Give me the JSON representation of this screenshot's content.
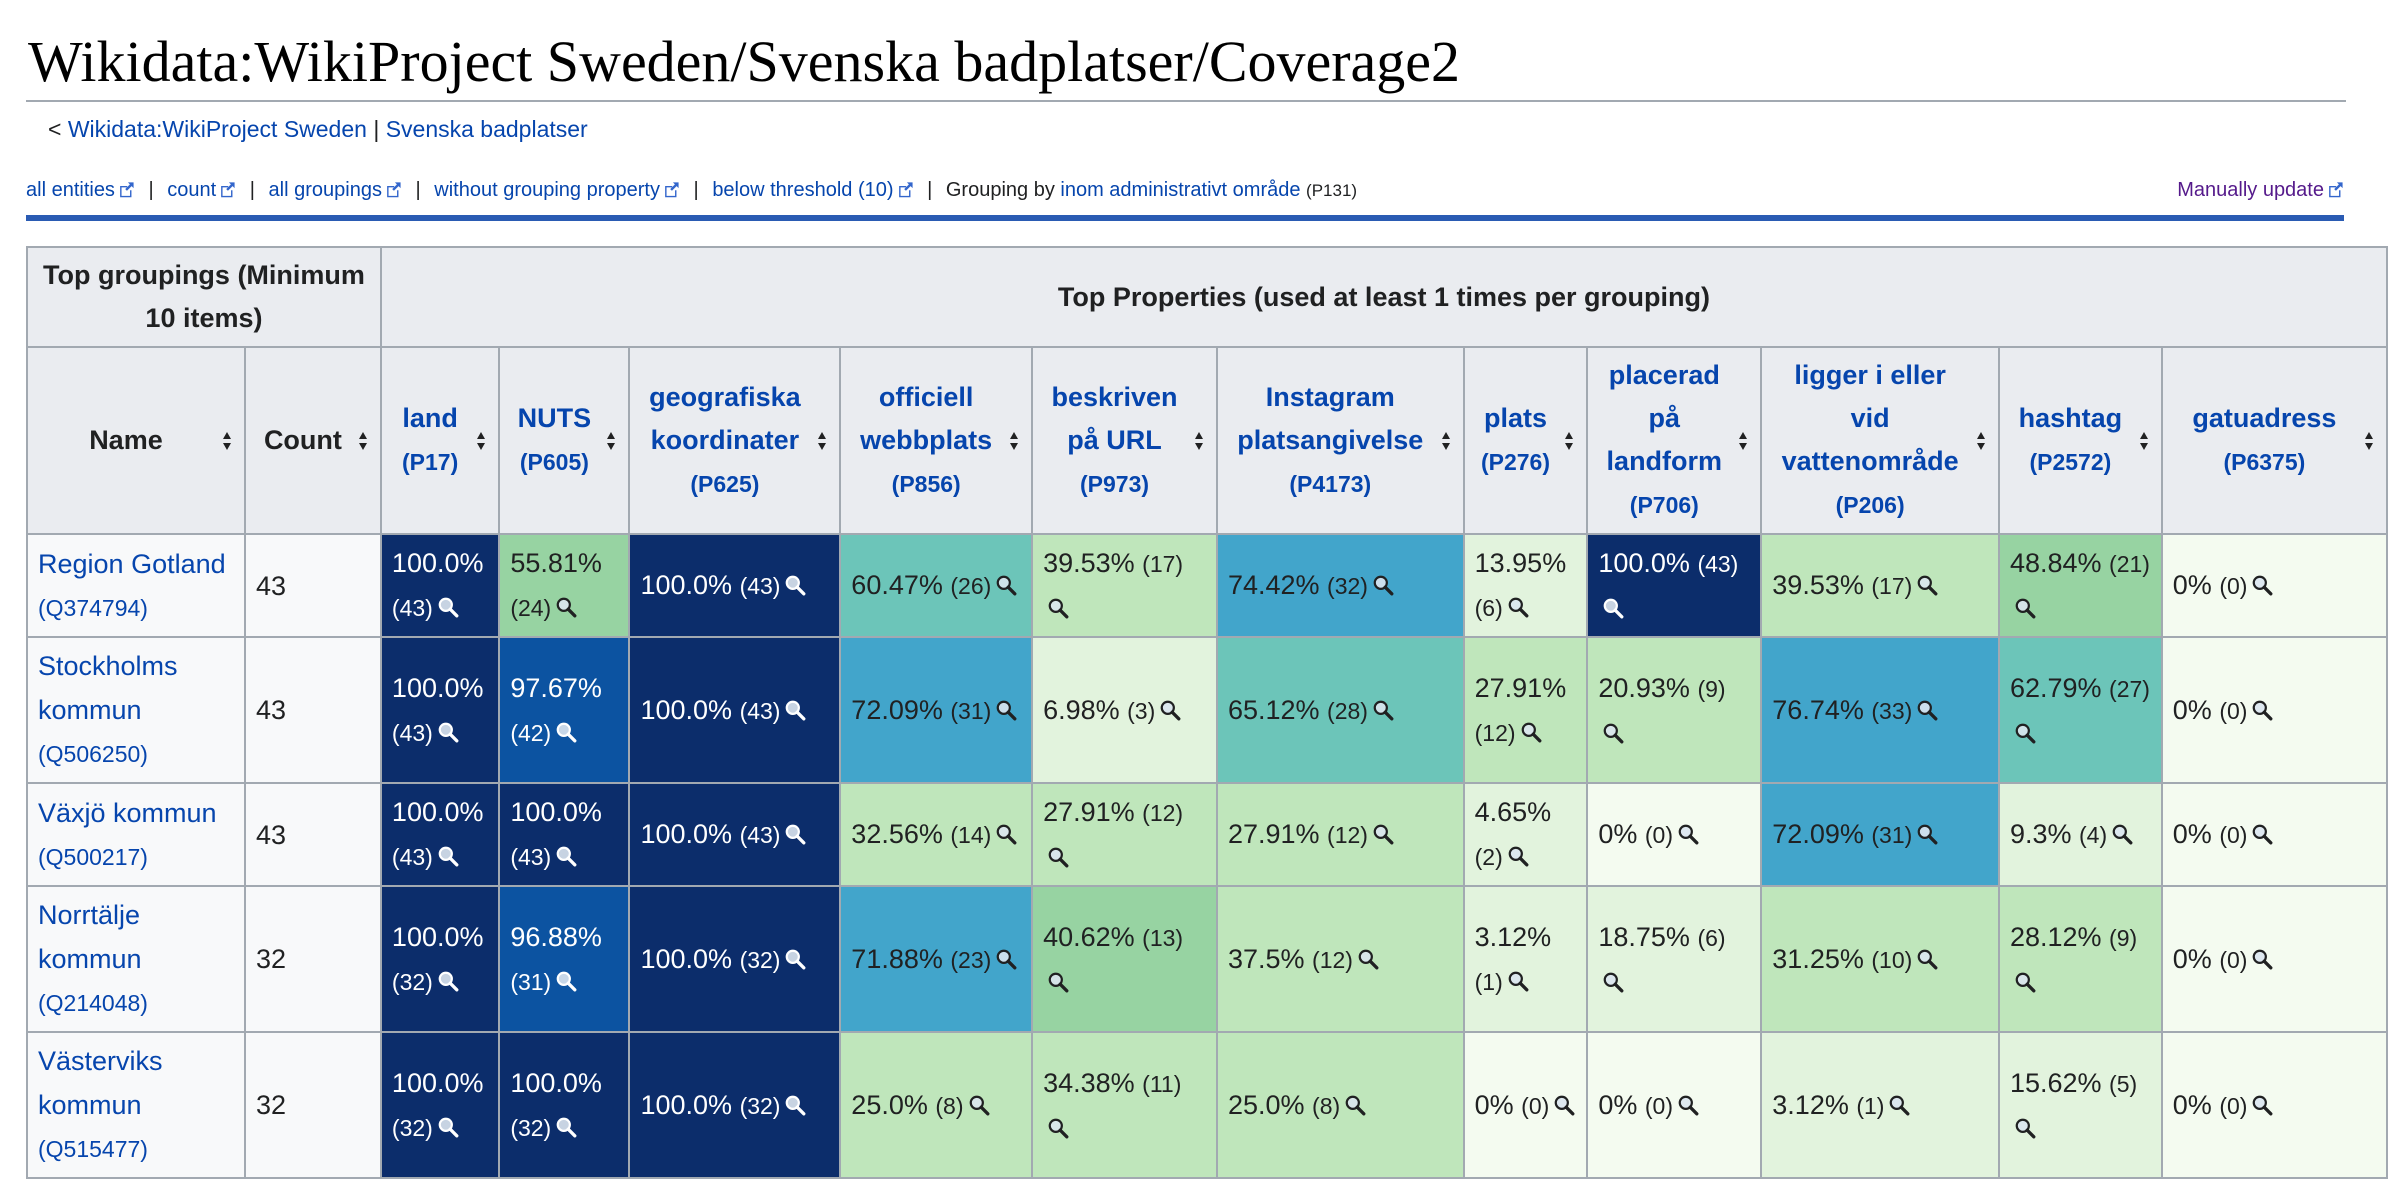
{
  "page": {
    "title": "Wikidata:WikiProject Sweden/Svenska badplatser/Coverage2",
    "subpages": {
      "prefix": "<",
      "parent_link": "Wikidata:WikiProject Sweden",
      "separator": "|",
      "child_link": "Svenska badplatser"
    }
  },
  "navbar": {
    "links": [
      "all entities",
      "count",
      "all groupings",
      "without grouping property",
      "below threshold (10)"
    ],
    "separator": "|",
    "grouping_prefix": "Grouping by",
    "grouping_property": "inom administrativt område",
    "grouping_pid": "(P131)",
    "manual_update": "Manually update"
  },
  "table": {
    "top_groupings_header": "Top groupings (Minimum 10 items)",
    "top_properties_header": "Top Properties (used at least 1 times per grouping)",
    "name_header": "Name",
    "count_header": "Count",
    "properties": [
      {
        "label": "land",
        "pid": "(P17)"
      },
      {
        "label": "NUTS",
        "pid": "(P605)"
      },
      {
        "label": "geografiska koordinater",
        "pid": "(P625)"
      },
      {
        "label": "officiell webbplats",
        "pid": "(P856)"
      },
      {
        "label": "beskriven på URL",
        "pid": "(P973)"
      },
      {
        "label": "Instagram platsangivelse",
        "pid": "(P4173)"
      },
      {
        "label": "plats",
        "pid": "(P276)"
      },
      {
        "label": "placerad på landform",
        "pid": "(P706)"
      },
      {
        "label": "ligger i eller vid vattenområde",
        "pid": "(P206)"
      },
      {
        "label": "hashtag",
        "pid": "(P2572)"
      },
      {
        "label": "gatuadress",
        "pid": "(P6375)"
      }
    ],
    "rows": [
      {
        "name": "Region Gotland",
        "qid": "(Q374794)",
        "count": "43",
        "cells": [
          {
            "pct": "100.0%",
            "num": "(43)",
            "bg": "#0c2d6b",
            "dark": true
          },
          {
            "pct": "55.81%",
            "num": "(24)",
            "bg": "#97d3a2",
            "dark": false
          },
          {
            "pct": "100.0%",
            "num": "(43)",
            "bg": "#0c2d6b",
            "dark": true
          },
          {
            "pct": "60.47%",
            "num": "(26)",
            "bg": "#6cc5b9",
            "dark": false
          },
          {
            "pct": "39.53%",
            "num": "(17)",
            "bg": "#bfe6bb",
            "dark": false
          },
          {
            "pct": "74.42%",
            "num": "(32)",
            "bg": "#42a5cb",
            "dark": false
          },
          {
            "pct": "13.95%",
            "num": "(6)",
            "bg": "#e2f3dd",
            "dark": false
          },
          {
            "pct": "100.0%",
            "num": "(43)",
            "bg": "#0c2d6b",
            "dark": true
          },
          {
            "pct": "39.53%",
            "num": "(17)",
            "bg": "#bfe6bb",
            "dark": false
          },
          {
            "pct": "48.84%",
            "num": "(21)",
            "bg": "#97d3a2",
            "dark": false
          },
          {
            "pct": "0%",
            "num": "(0)",
            "bg": "#f4fbf0",
            "dark": false
          }
        ]
      },
      {
        "name": "Stockholms kommun",
        "qid": "(Q506250)",
        "count": "43",
        "cells": [
          {
            "pct": "100.0%",
            "num": "(43)",
            "bg": "#0c2d6b",
            "dark": true
          },
          {
            "pct": "97.67%",
            "num": "(42)",
            "bg": "#0c53a1",
            "dark": true
          },
          {
            "pct": "100.0%",
            "num": "(43)",
            "bg": "#0c2d6b",
            "dark": true
          },
          {
            "pct": "72.09%",
            "num": "(31)",
            "bg": "#42a5cb",
            "dark": false
          },
          {
            "pct": "6.98%",
            "num": "(3)",
            "bg": "#e2f3dd",
            "dark": false
          },
          {
            "pct": "65.12%",
            "num": "(28)",
            "bg": "#6cc5b9",
            "dark": false
          },
          {
            "pct": "27.91%",
            "num": "(12)",
            "bg": "#bfe6bb",
            "dark": false
          },
          {
            "pct": "20.93%",
            "num": "(9)",
            "bg": "#bfe6bb",
            "dark": false
          },
          {
            "pct": "76.74%",
            "num": "(33)",
            "bg": "#42a5cb",
            "dark": false
          },
          {
            "pct": "62.79%",
            "num": "(27)",
            "bg": "#6cc5b9",
            "dark": false
          },
          {
            "pct": "0%",
            "num": "(0)",
            "bg": "#f4fbf0",
            "dark": false
          }
        ]
      },
      {
        "name": "Växjö kommun",
        "qid": "(Q500217)",
        "count": "43",
        "cells": [
          {
            "pct": "100.0%",
            "num": "(43)",
            "bg": "#0c2d6b",
            "dark": true
          },
          {
            "pct": "100.0%",
            "num": "(43)",
            "bg": "#0c2d6b",
            "dark": true
          },
          {
            "pct": "100.0%",
            "num": "(43)",
            "bg": "#0c2d6b",
            "dark": true
          },
          {
            "pct": "32.56%",
            "num": "(14)",
            "bg": "#bfe6bb",
            "dark": false
          },
          {
            "pct": "27.91%",
            "num": "(12)",
            "bg": "#bfe6bb",
            "dark": false
          },
          {
            "pct": "27.91%",
            "num": "(12)",
            "bg": "#bfe6bb",
            "dark": false
          },
          {
            "pct": "4.65%",
            "num": "(2)",
            "bg": "#e2f3dd",
            "dark": false
          },
          {
            "pct": "0%",
            "num": "(0)",
            "bg": "#f4fbf0",
            "dark": false
          },
          {
            "pct": "72.09%",
            "num": "(31)",
            "bg": "#42a5cb",
            "dark": false
          },
          {
            "pct": "9.3%",
            "num": "(4)",
            "bg": "#e2f3dd",
            "dark": false
          },
          {
            "pct": "0%",
            "num": "(0)",
            "bg": "#f4fbf0",
            "dark": false
          }
        ]
      },
      {
        "name": "Norrtälje kommun",
        "qid": "(Q214048)",
        "count": "32",
        "cells": [
          {
            "pct": "100.0%",
            "num": "(32)",
            "bg": "#0c2d6b",
            "dark": true
          },
          {
            "pct": "96.88%",
            "num": "(31)",
            "bg": "#0c53a1",
            "dark": true
          },
          {
            "pct": "100.0%",
            "num": "(32)",
            "bg": "#0c2d6b",
            "dark": true
          },
          {
            "pct": "71.88%",
            "num": "(23)",
            "bg": "#42a5cb",
            "dark": false
          },
          {
            "pct": "40.62%",
            "num": "(13)",
            "bg": "#97d3a2",
            "dark": false
          },
          {
            "pct": "37.5%",
            "num": "(12)",
            "bg": "#bfe6bb",
            "dark": false
          },
          {
            "pct": "3.12%",
            "num": "(1)",
            "bg": "#e2f3dd",
            "dark": false
          },
          {
            "pct": "18.75%",
            "num": "(6)",
            "bg": "#e2f3dd",
            "dark": false
          },
          {
            "pct": "31.25%",
            "num": "(10)",
            "bg": "#bfe6bb",
            "dark": false
          },
          {
            "pct": "28.12%",
            "num": "(9)",
            "bg": "#bfe6bb",
            "dark": false
          },
          {
            "pct": "0%",
            "num": "(0)",
            "bg": "#f4fbf0",
            "dark": false
          }
        ]
      },
      {
        "name": "Västerviks kommun",
        "qid": "(Q515477)",
        "count": "32",
        "cells": [
          {
            "pct": "100.0%",
            "num": "(32)",
            "bg": "#0c2d6b",
            "dark": true
          },
          {
            "pct": "100.0%",
            "num": "(32)",
            "bg": "#0c2d6b",
            "dark": true
          },
          {
            "pct": "100.0%",
            "num": "(32)",
            "bg": "#0c2d6b",
            "dark": true
          },
          {
            "pct": "25.0%",
            "num": "(8)",
            "bg": "#bfe6bb",
            "dark": false
          },
          {
            "pct": "34.38%",
            "num": "(11)",
            "bg": "#bfe6bb",
            "dark": false
          },
          {
            "pct": "25.0%",
            "num": "(8)",
            "bg": "#bfe6bb",
            "dark": false
          },
          {
            "pct": "0%",
            "num": "(0)",
            "bg": "#f4fbf0",
            "dark": false
          },
          {
            "pct": "0%",
            "num": "(0)",
            "bg": "#f4fbf0",
            "dark": false
          },
          {
            "pct": "3.12%",
            "num": "(1)",
            "bg": "#e2f3dd",
            "dark": false
          },
          {
            "pct": "15.62%",
            "num": "(5)",
            "bg": "#e2f3dd",
            "dark": false
          },
          {
            "pct": "0%",
            "num": "(0)",
            "bg": "#f4fbf0",
            "dark": false
          }
        ]
      }
    ]
  }
}
